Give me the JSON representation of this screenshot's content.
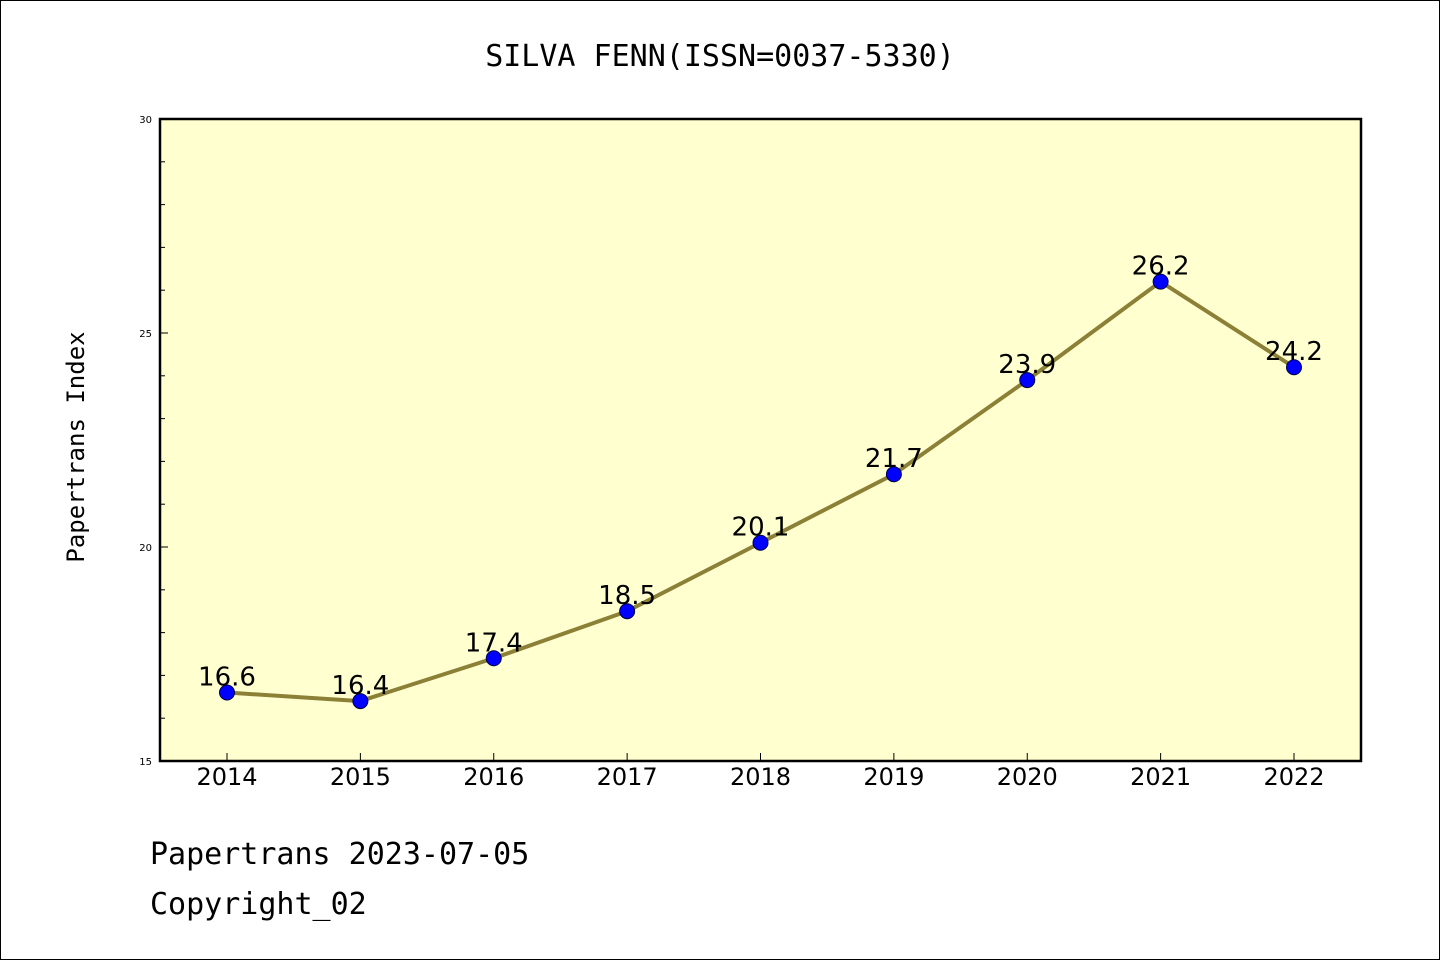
{
  "chart_data": {
    "type": "line",
    "title": "SILVA FENN(ISSN=0037-5330)",
    "ylabel": "Papertrans Index",
    "xlabel": "",
    "categories": [
      "2014",
      "2015",
      "2016",
      "2017",
      "2018",
      "2019",
      "2020",
      "2021",
      "2022"
    ],
    "values": [
      16.6,
      16.4,
      17.4,
      18.5,
      20.1,
      21.7,
      23.9,
      26.2,
      24.2
    ],
    "data_labels": [
      "16.6",
      "16.4",
      "17.4",
      "18.5",
      "20.1",
      "21.7",
      "23.9",
      "26.2",
      "24.2"
    ],
    "ylim": [
      15,
      30
    ],
    "yticks": [
      "15",
      "20",
      "25",
      "30"
    ],
    "grid": false,
    "legend": "none",
    "colors": {
      "plot_background": "#ffffd0",
      "line": "#8b8036",
      "marker": "#0000ff"
    }
  },
  "footer": {
    "line1": "Papertrans 2023-07-05",
    "line2": "Copyright_02"
  }
}
